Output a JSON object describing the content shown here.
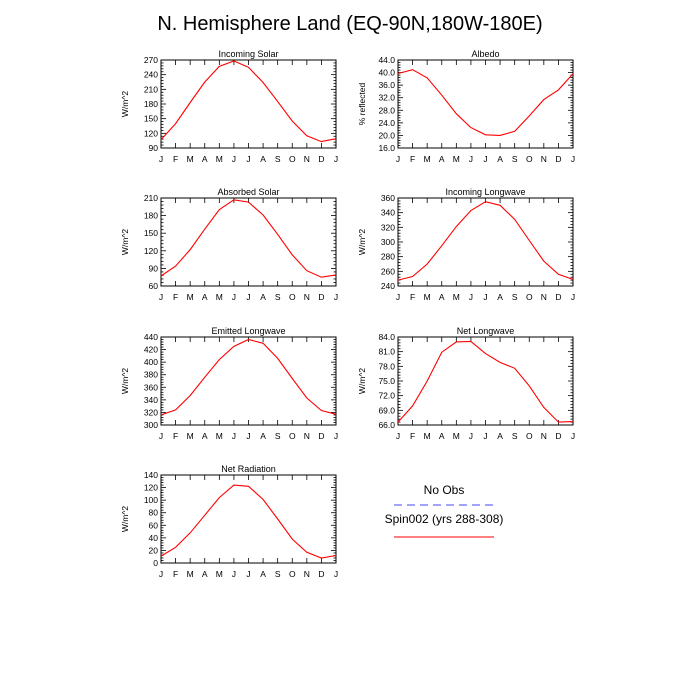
{
  "title": "N. Hemisphere Land (EQ-90N,180W-180E)",
  "months": [
    "J",
    "F",
    "M",
    "A",
    "M",
    "J",
    "J",
    "A",
    "S",
    "O",
    "N",
    "D",
    "J"
  ],
  "colors": {
    "model": "#ff0000",
    "obs": "#4444ff",
    "axis": "#000000"
  },
  "legend": {
    "obs_label": "No Obs",
    "model_label": "Spin002 (yrs 288-308)"
  },
  "chart_data": [
    {
      "type": "line",
      "title": "Incoming Solar",
      "ylabel": "W/m^2",
      "ylim": [
        90,
        270
      ],
      "yticks": [
        90,
        120,
        150,
        180,
        210,
        240,
        270
      ],
      "ytick_labels": [
        "90",
        "120",
        "150",
        "180",
        "210",
        "240",
        "270"
      ],
      "categories": [
        "J",
        "F",
        "M",
        "A",
        "M",
        "J",
        "J",
        "A",
        "S",
        "O",
        "N",
        "D",
        "J"
      ],
      "series": [
        {
          "name": "Spin002 (yrs 288-308)",
          "values": [
            107,
            140,
            183,
            225,
            257,
            268,
            255,
            224,
            185,
            145,
            115,
            103,
            109
          ]
        }
      ]
    },
    {
      "type": "line",
      "title": "Albedo",
      "ylabel": "% reflected",
      "ylim": [
        16,
        44
      ],
      "yticks": [
        16,
        20,
        24,
        28,
        32,
        36,
        40,
        44
      ],
      "ytick_labels": [
        "16.0",
        "20.0",
        "24.0",
        "28.0",
        "32.0",
        "36.0",
        "40.0",
        "44.0"
      ],
      "categories": [
        "J",
        "F",
        "M",
        "A",
        "M",
        "J",
        "J",
        "A",
        "S",
        "O",
        "N",
        "D",
        "J"
      ],
      "series": [
        {
          "name": "Spin002 (yrs 288-308)",
          "values": [
            39.7,
            40.9,
            38.3,
            32.8,
            26.9,
            22.5,
            20.2,
            20.0,
            21.3,
            26.2,
            31.4,
            34.5,
            39.6
          ]
        }
      ]
    },
    {
      "type": "line",
      "title": "Absorbed Solar",
      "ylabel": "W/m^2",
      "ylim": [
        60,
        210
      ],
      "yticks": [
        60,
        90,
        120,
        150,
        180,
        210
      ],
      "ytick_labels": [
        "60",
        "90",
        "120",
        "150",
        "180",
        "210"
      ],
      "categories": [
        "J",
        "F",
        "M",
        "A",
        "M",
        "J",
        "J",
        "A",
        "S",
        "O",
        "N",
        "D",
        "J"
      ],
      "series": [
        {
          "name": "Spin002 (yrs 288-308)",
          "values": [
            77,
            94,
            122,
            157,
            190,
            207,
            203,
            181,
            148,
            113,
            86,
            75,
            79
          ]
        }
      ]
    },
    {
      "type": "line",
      "title": "Incoming Longwave",
      "ylabel": "W/m^2",
      "ylim": [
        240,
        360
      ],
      "yticks": [
        240,
        260,
        280,
        300,
        320,
        340,
        360
      ],
      "ytick_labels": [
        "240",
        "260",
        "280",
        "300",
        "320",
        "340",
        "360"
      ],
      "categories": [
        "J",
        "F",
        "M",
        "A",
        "M",
        "J",
        "J",
        "A",
        "S",
        "O",
        "N",
        "D",
        "J"
      ],
      "series": [
        {
          "name": "Spin002 (yrs 288-308)",
          "values": [
            248,
            253,
            270,
            295,
            321,
            343,
            355,
            350,
            331,
            302,
            274,
            256,
            249
          ]
        }
      ]
    },
    {
      "type": "line",
      "title": "Emitted Longwave",
      "ylabel": "W/m^2",
      "ylim": [
        300,
        440
      ],
      "yticks": [
        300,
        320,
        340,
        360,
        380,
        400,
        420,
        440
      ],
      "ytick_labels": [
        "300",
        "320",
        "340",
        "360",
        "380",
        "400",
        "420",
        "440"
      ],
      "categories": [
        "J",
        "F",
        "M",
        "A",
        "M",
        "J",
        "J",
        "A",
        "S",
        "O",
        "N",
        "D",
        "J"
      ],
      "series": [
        {
          "name": "Spin002 (yrs 288-308)",
          "values": [
            316,
            324,
            347,
            376,
            404,
            425,
            436,
            430,
            406,
            374,
            343,
            323,
            317
          ]
        }
      ]
    },
    {
      "type": "line",
      "title": "Net Longwave",
      "ylabel": "W/m^2",
      "ylim": [
        66,
        84
      ],
      "yticks": [
        66,
        69,
        72,
        75,
        78,
        81,
        84
      ],
      "ytick_labels": [
        "66.0",
        "69.0",
        "72.0",
        "75.0",
        "78.0",
        "81.0",
        "84.0"
      ],
      "categories": [
        "J",
        "F",
        "M",
        "A",
        "M",
        "J",
        "J",
        "A",
        "S",
        "O",
        "N",
        "D",
        "J"
      ],
      "series": [
        {
          "name": "Spin002 (yrs 288-308)",
          "values": [
            66.6,
            69.9,
            75.0,
            80.9,
            83.0,
            83.1,
            80.6,
            78.8,
            77.6,
            74.0,
            69.6,
            66.6,
            66.7
          ]
        }
      ]
    },
    {
      "type": "line",
      "title": "Net Radiation",
      "ylabel": "W/m^2",
      "ylim": [
        0,
        140
      ],
      "yticks": [
        0,
        20,
        40,
        60,
        80,
        100,
        120,
        140
      ],
      "ytick_labels": [
        "0",
        "20",
        "40",
        "60",
        "80",
        "100",
        "120",
        "140"
      ],
      "categories": [
        "J",
        "F",
        "M",
        "A",
        "M",
        "J",
        "J",
        "A",
        "S",
        "O",
        "N",
        "D",
        "J"
      ],
      "series": [
        {
          "name": "Spin002 (yrs 288-308)",
          "values": [
            11,
            25,
            48,
            76,
            104,
            124,
            122,
            101,
            70,
            38,
            17,
            8,
            12
          ]
        }
      ]
    }
  ]
}
